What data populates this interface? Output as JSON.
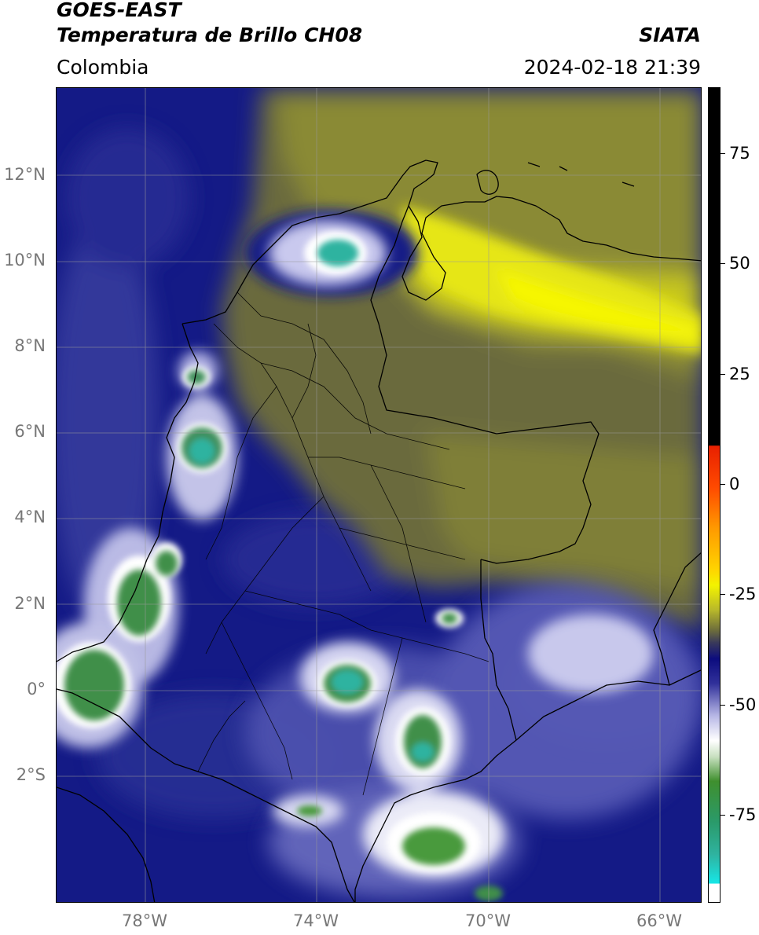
{
  "header": {
    "title_line1": "GOES-EAST",
    "title_line2": "Temperatura de Brillo CH08",
    "organization": "SIATA",
    "region": "Colombia",
    "datetime": "2024-02-18 21:39"
  },
  "map": {
    "latitude_labels": [
      "12°N",
      "10°N",
      "8°N",
      "6°N",
      "4°N",
      "2°N",
      "0°",
      "2°S"
    ],
    "longitude_labels": [
      "78°W",
      "74°W",
      "70°W",
      "66°W"
    ],
    "gridlines": true
  },
  "colorbar": {
    "tick_labels": [
      "75",
      "50",
      "25",
      "0",
      "-25",
      "-50",
      "-75"
    ],
    "tick_values": [
      75,
      50,
      25,
      0,
      -25,
      -50,
      -75
    ],
    "range": [
      -95,
      90
    ],
    "colors": {
      "above_10": "#000000",
      "red": "#e82000",
      "orange": "#ff9a00",
      "yellow": "#f3f300",
      "olive": "#6d6d3c",
      "navy": "#0c0c7e",
      "lavender": "#b8b8e6",
      "white": "#ffffff",
      "green": "#3f8f2e",
      "teal": "#2fb3a0",
      "cyan": "#17e6e6"
    }
  }
}
